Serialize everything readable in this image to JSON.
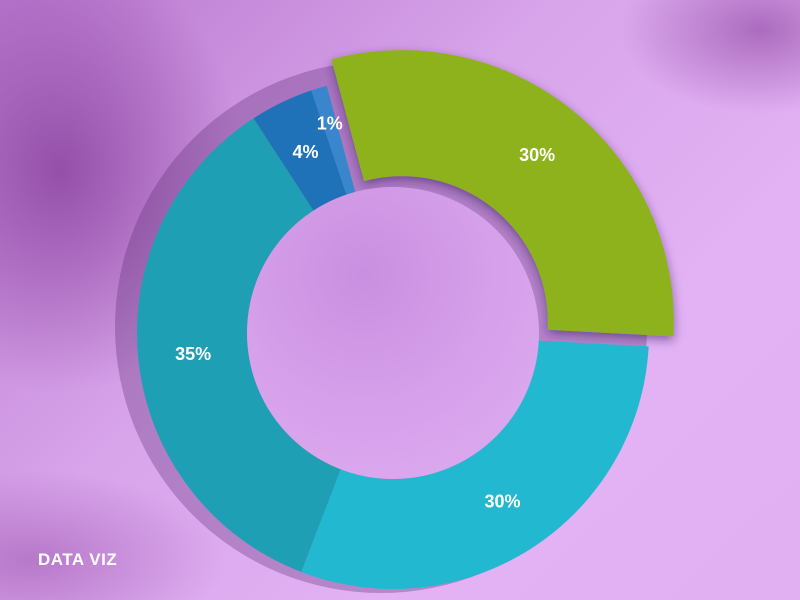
{
  "footer_label": "DATA VIZ",
  "chart_data": {
    "type": "pie",
    "variant": "donut",
    "categories": [
      "green",
      "cyan",
      "teal",
      "blue",
      "light-blue"
    ],
    "values": [
      30,
      30,
      35,
      4,
      1
    ],
    "labels": [
      "30%",
      "30%",
      "35%",
      "4%",
      "1%"
    ],
    "colors": [
      "#8db21c",
      "#22b9d0",
      "#1e9fb4",
      "#1f72b8",
      "#3a86cc"
    ],
    "exploded_slice": "green"
  }
}
